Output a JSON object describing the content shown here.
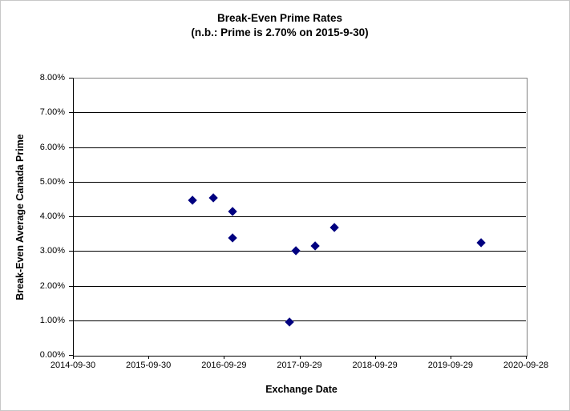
{
  "chart": {
    "title_line1": "Break-Even Prime Rates",
    "title_line2": "(n.b.: Prime is 2.70% on 2015-9-30)",
    "x_axis_title": "Exchange Date",
    "y_axis_title": "Break-Even Average Canada Prime"
  },
  "chart_data": {
    "type": "scatter",
    "title": "Break-Even Prime Rates",
    "subtitle": "(n.b.: Prime is 2.70% on 2015-9-30)",
    "xlabel": "Exchange Date",
    "ylabel": "Break-Even Average Canada Prime",
    "legend": "none",
    "grid": "horizontal-black",
    "marker": {
      "shape": "diamond",
      "color": "#000080"
    },
    "x_axis": {
      "tick_labels": [
        "2014-09-30",
        "2015-09-30",
        "2016-09-29",
        "2017-09-29",
        "2018-09-29",
        "2019-09-29",
        "2020-09-28"
      ],
      "range_years": [
        0,
        6
      ]
    },
    "y_axis": {
      "tick_labels": [
        "0.00%",
        "1.00%",
        "2.00%",
        "3.00%",
        "4.00%",
        "5.00%",
        "6.00%",
        "7.00%",
        "8.00%"
      ],
      "range_percent": [
        0,
        8
      ],
      "tick_step_percent": 1
    },
    "points": [
      {
        "x_years_after_2014_09_30": 1.58,
        "date_est": "2016-05",
        "y_percent": 4.45
      },
      {
        "x_years_after_2014_09_30": 1.86,
        "date_est": "2016-08",
        "y_percent": 4.53
      },
      {
        "x_years_after_2014_09_30": 2.11,
        "date_est": "2016-11",
        "y_percent": 4.13
      },
      {
        "x_years_after_2014_09_30": 2.11,
        "date_est": "2016-11",
        "y_percent": 3.38
      },
      {
        "x_years_after_2014_09_30": 2.87,
        "date_est": "2017-08",
        "y_percent": 0.95
      },
      {
        "x_years_after_2014_09_30": 2.95,
        "date_est": "2017-09",
        "y_percent": 3.0
      },
      {
        "x_years_after_2014_09_30": 3.21,
        "date_est": "2017-12",
        "y_percent": 3.15
      },
      {
        "x_years_after_2014_09_30": 3.46,
        "date_est": "2018-03",
        "y_percent": 3.68
      },
      {
        "x_years_after_2014_09_30": 5.41,
        "date_est": "2020-02",
        "y_percent": 3.23
      }
    ]
  },
  "colors": {
    "marker": "#000080",
    "gridline": "#000000",
    "plot_border_top_right": "#808080",
    "axis": "#000000",
    "background": "#ffffff"
  }
}
